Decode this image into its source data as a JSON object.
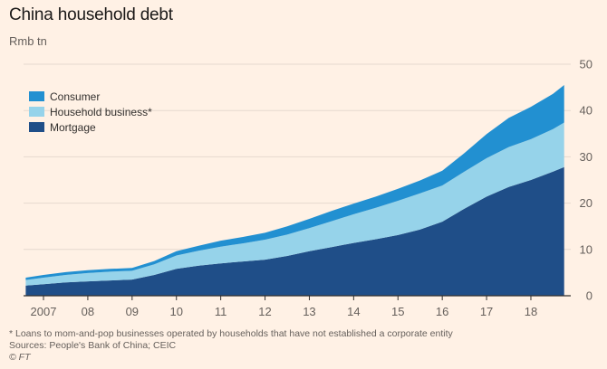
{
  "title": "China household debt",
  "subtitle": "Rmb tn",
  "footnote": "* Loans to mom-and-pop businesses operated by households that have not established a corporate entity",
  "source": "Sources: People's Bank of China; CEIC",
  "credit": "© FT",
  "colors": {
    "background": "#fff1e5",
    "mortgage": "#1f4e88",
    "household_business": "#96d3ea",
    "consumer": "#2290d1",
    "gridline": "#e6d9ce",
    "axis": "#33302e"
  },
  "chart_data": {
    "type": "area",
    "stacked": true,
    "ylabel": "Rmb tn",
    "ylim": [
      0,
      50
    ],
    "yticks": [
      0,
      10,
      20,
      30,
      40,
      50
    ],
    "y_axis_side": "right",
    "xlim": [
      2006.55,
      2018.9
    ],
    "xtick_labels": [
      "2007",
      "08",
      "09",
      "10",
      "11",
      "12",
      "13",
      "14",
      "15",
      "16",
      "17",
      "18"
    ],
    "xtick_positions": [
      2007,
      2008,
      2009,
      2010,
      2011,
      2012,
      2013,
      2014,
      2015,
      2016,
      2017,
      2018
    ],
    "grid": true,
    "legend_position": "top-left",
    "x": [
      2006.6,
      2007.0,
      2007.5,
      2008.0,
      2008.5,
      2009.0,
      2009.5,
      2010.0,
      2010.5,
      2011.0,
      2011.5,
      2012.0,
      2012.5,
      2013.0,
      2013.5,
      2014.0,
      2014.5,
      2015.0,
      2015.5,
      2016.0,
      2016.5,
      2017.0,
      2017.5,
      2018.0,
      2018.5,
      2018.75
    ],
    "series": [
      {
        "name": "Mortgage",
        "color": "#1f4e88",
        "values": [
          2.2,
          2.5,
          2.9,
          3.1,
          3.3,
          3.5,
          4.5,
          5.8,
          6.5,
          7.0,
          7.4,
          7.8,
          8.6,
          9.6,
          10.5,
          11.4,
          12.2,
          13.1,
          14.3,
          16.0,
          18.8,
          21.4,
          23.5,
          25.0,
          26.8,
          27.8
        ]
      },
      {
        "name": "Household business*",
        "color": "#96d3ea",
        "values": [
          1.2,
          1.4,
          1.6,
          1.8,
          1.9,
          1.9,
          2.3,
          2.9,
          3.2,
          3.6,
          3.9,
          4.3,
          4.6,
          5.0,
          5.6,
          6.2,
          6.8,
          7.4,
          7.8,
          7.8,
          8.0,
          8.3,
          8.6,
          8.8,
          9.2,
          9.6
        ]
      },
      {
        "name": "Consumer",
        "color": "#2290d1",
        "values": [
          0.5,
          0.6,
          0.6,
          0.6,
          0.6,
          0.6,
          0.7,
          0.9,
          1.1,
          1.3,
          1.4,
          1.5,
          1.8,
          2.0,
          2.2,
          2.3,
          2.4,
          2.6,
          2.8,
          3.2,
          4.0,
          5.2,
          6.3,
          7.0,
          7.6,
          8.1
        ]
      }
    ]
  }
}
